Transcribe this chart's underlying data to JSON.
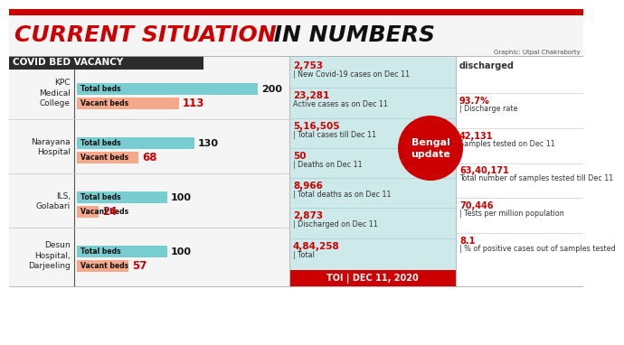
{
  "title_red": "CURRENT SITUATION",
  "title_black": " IN NUMBERS",
  "graphic_credit": "Graphic: Utpal Chakraborty",
  "section_left_title": "COVID BED VACANCY",
  "hospitals": [
    {
      "name": "KPC\nMedical\nCollege",
      "total": 200,
      "vacant": 113
    },
    {
      "name": "Narayana\nHospital",
      "total": 130,
      "vacant": 68
    },
    {
      "name": "ILS,\nGolabari",
      "total": 100,
      "vacant": 24
    },
    {
      "name": "Desun\nHospital,\nDarjeeling",
      "total": 100,
      "vacant": 57
    }
  ],
  "bar_total_color": "#78cdd1",
  "bar_vacant_color": "#f5a98a",
  "label_total": "Total beds",
  "label_vacant": "Vacant beds",
  "mid_stats": [
    {
      "val": "2,753",
      "desc": "| New\nCovid-19 cases on\nDec 11"
    },
    {
      "val": "23,281",
      "desc": "Active cases\nas on Dec 11"
    },
    {
      "val": "5,16,505",
      "desc": "| Total\ncases till Dec 11"
    },
    {
      "val": "50",
      "desc": "| Deaths on\nDec 11"
    },
    {
      "val": "8,966",
      "desc": "| Total\ndeaths as on\nDec 11"
    },
    {
      "val": "2,873",
      "desc": "| Discharged\non Dec 11"
    },
    {
      "val": "4,84,258",
      "desc": "| Total"
    }
  ],
  "right_stats": [
    {
      "val": "discharged",
      "desc": "",
      "vcol": "#333333"
    },
    {
      "val": "93.7%",
      "desc": "| Discharge\nrate",
      "vcol": "#cc0000"
    },
    {
      "val": "42,131",
      "desc": "Samples\ntested on\nDec 11",
      "vcol": "#cc0000"
    },
    {
      "val": "63,40,171",
      "desc": "Total number of\nsamples tested till\nDec 11",
      "vcol": "#cc0000"
    },
    {
      "val": "70,446",
      "desc": "| Tests per\nmillion population",
      "vcol": "#cc0000"
    },
    {
      "val": "8.1",
      "desc": "| % of positive\ncases out of\nsamples tested",
      "vcol": "#cc0000"
    }
  ],
  "bengal_text": "Bengal\nupdate",
  "footer_text": "TOI | DEC 11, 2020",
  "header_top_color": "#cc0000",
  "header_bg": "#f5f5f5",
  "left_bg": "#f5f5f5",
  "mid_bg": "#cde9ea",
  "right_bg": "#ffffff",
  "sec_hdr_bg": "#2b2b2b",
  "stat_red": "#cc0000",
  "stat_dark": "#333333",
  "bengal_color": "#cc0000",
  "footer_color": "#cc0000",
  "divider_color": "#bbbbbb",
  "left_divider": "#555555"
}
